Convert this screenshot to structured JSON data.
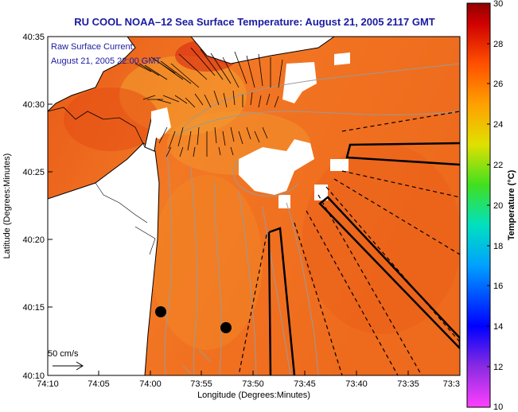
{
  "title": "RU COOL  NOAA–12  Sea Surface Temperature:  August 21, 2005 2117 GMT",
  "legend": {
    "line1": "Raw Surface Current:",
    "line2": "August 21, 2005 22:00 GMT"
  },
  "scale_arrow": {
    "label": "50 cm/s"
  },
  "x_axis": {
    "label": "Longitude (Degrees:Minutes)",
    "ticks": [
      "74:10",
      "74:05",
      "74:00",
      "73:55",
      "73:50",
      "73:45",
      "73:40",
      "73:35",
      "73:3"
    ]
  },
  "y_axis": {
    "label": "Latitude (Degrees:Minutes)",
    "ticks": [
      "40:35",
      "40:30",
      "40:25",
      "40:20",
      "40:15",
      "40:10"
    ]
  },
  "colorbar": {
    "label": "Temperature (°C)",
    "ticks": [
      "30",
      "28",
      "26",
      "24",
      "22",
      "20",
      "18",
      "16",
      "14",
      "12",
      "10"
    ]
  },
  "colors": {
    "title": "#1a1aa0",
    "sst_base": "#f06a1e",
    "sst_warm": "#e04a14",
    "sst_cool": "#f8b040",
    "land": "#ffffff",
    "coast": "#000000",
    "isobath": "#9a9a9a"
  }
}
